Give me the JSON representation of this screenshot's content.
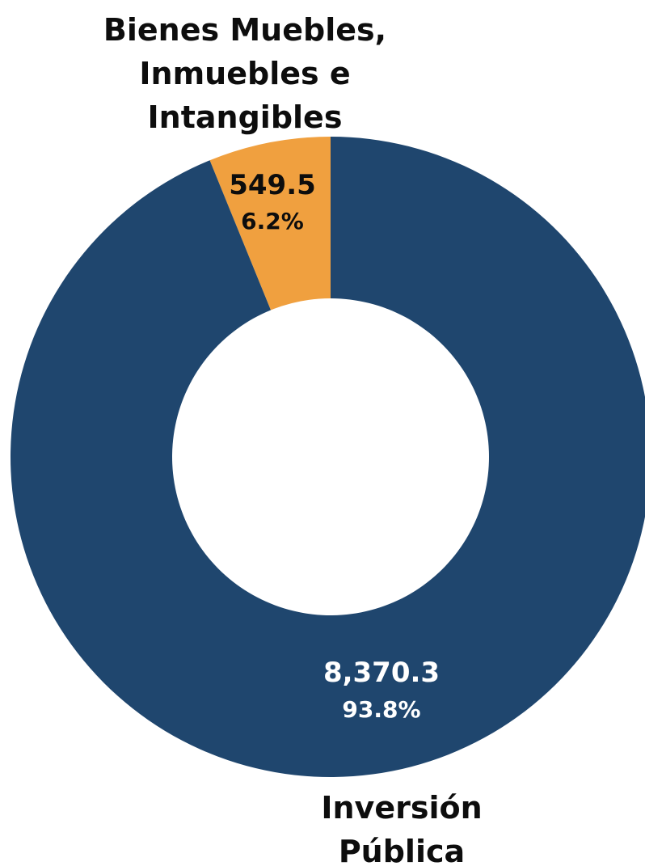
{
  "chart_data": {
    "type": "pie",
    "donut": true,
    "categories": [
      "Inversión Pública",
      "Bienes Muebles, Inmuebles e Intangibles"
    ],
    "values": [
      8370.3,
      549.5
    ],
    "value_labels": [
      "8,370.3",
      "549.5"
    ],
    "percent_labels": [
      "93.8%",
      "6.2%"
    ],
    "category_label_lines": [
      [
        "Inversión",
        "Pública"
      ],
      [
        "Bienes Muebles,",
        "Inmuebles e",
        "Intangibles"
      ]
    ],
    "colors": [
      "#1f466e",
      "#f0a03f"
    ],
    "label_colors": [
      "#ffffff",
      "#0d0d0d"
    ]
  }
}
